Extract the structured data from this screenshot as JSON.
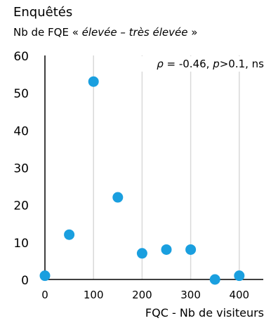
{
  "chart_data": {
    "type": "scatter",
    "title": "Enquêtés",
    "subtitle": {
      "prefix": "Nb de FQE « ",
      "emphasis": "élevée – très élevée",
      "suffix": " »"
    },
    "xlabel": "FQC - Nb de visiteurs",
    "ylabel": "",
    "xlim": [
      0,
      450
    ],
    "ylim": [
      0,
      60
    ],
    "x_ticks": [
      "0",
      "100",
      "200",
      "300",
      "400"
    ],
    "y_ticks": [
      "0",
      "10",
      "20",
      "30",
      "40",
      "50",
      "60"
    ],
    "grid": "vertical",
    "annotation": {
      "rho_symbol": "ρ",
      "rho_value": " = -0.46, ",
      "p_symbol": "p",
      "p_value": ">0.1, ns"
    },
    "points": [
      {
        "x": 0,
        "y": 1
      },
      {
        "x": 50,
        "y": 12
      },
      {
        "x": 100,
        "y": 53
      },
      {
        "x": 150,
        "y": 22
      },
      {
        "x": 200,
        "y": 7
      },
      {
        "x": 250,
        "y": 8
      },
      {
        "x": 300,
        "y": 8
      },
      {
        "x": 350,
        "y": 0
      },
      {
        "x": 400,
        "y": 1
      }
    ],
    "colors": {
      "marker": "#1a9fdf",
      "grid": "#d9d9d9",
      "axis": "#000000"
    }
  }
}
